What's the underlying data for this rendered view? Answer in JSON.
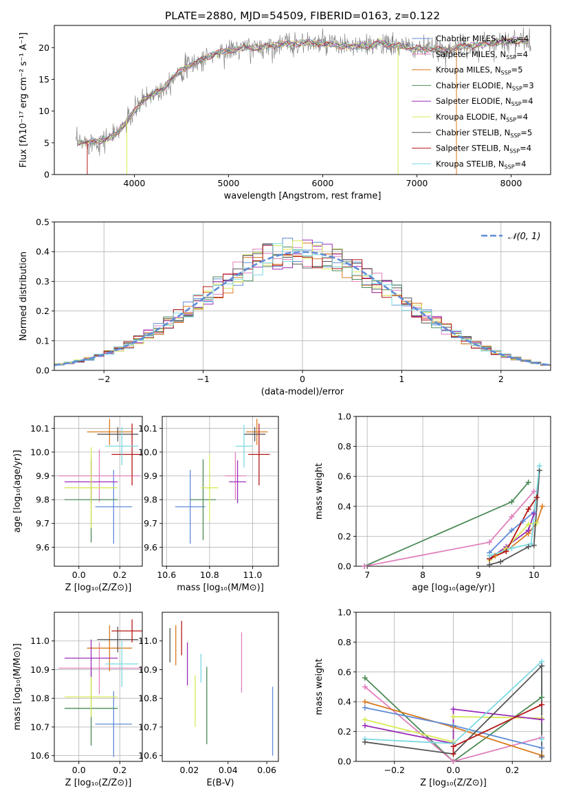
{
  "title": "PLATE=2880, MJD=54509, FIBERID=0163, z=0.122",
  "colors": {
    "chabrier_miles": "#5e8bd6",
    "salpeter_miles": "#e07fbd",
    "kroupa_miles": "#d9791c",
    "chabrier_elodie": "#4b8a55",
    "salpeter_elodie": "#9a2cb8",
    "kroupa_elodie": "#d8ea55",
    "chabrier_stelib": "#555555",
    "salpeter_stelib": "#b51515",
    "kroupa_stelib": "#7ad8e2",
    "gaussian": "#5e8bd6"
  },
  "chart_data": [
    {
      "id": "spectrum",
      "type": "line",
      "xlabel": "wavelength [Angstrom, rest frame]",
      "ylabel": "Flux [fλ10⁻¹⁷ erg cm⁻² s⁻¹ A⁻¹]",
      "xlim": [
        3150,
        8420
      ],
      "ylim": [
        0,
        23.5
      ],
      "xticks": [
        4000,
        5000,
        6000,
        7000,
        8000
      ],
      "yticks": [
        0,
        5,
        10,
        15,
        20
      ],
      "grid": false,
      "legend_position": "upper right",
      "continuum_x": [
        3400,
        3500,
        3600,
        3700,
        3800,
        3900,
        4000,
        4100,
        4200,
        4300,
        4400,
        4500,
        4600,
        4700,
        4800,
        4900,
        5000,
        5100,
        5200,
        5300,
        5400,
        5500,
        5600,
        5700,
        5800,
        5900,
        6000,
        6100,
        6200,
        6300,
        6400,
        6500,
        6600,
        6700,
        6800,
        6900,
        7000,
        7100,
        7200,
        7300,
        7400,
        7500,
        7600,
        7700,
        7800,
        7900,
        8000,
        8100,
        8200
      ],
      "continuum_y": [
        5.0,
        5.1,
        5.2,
        5.6,
        6.3,
        8.0,
        10.0,
        11.8,
        12.8,
        13.5,
        15.2,
        16.5,
        17.2,
        18.0,
        18.7,
        19.2,
        19.5,
        19.8,
        20.0,
        19.9,
        20.1,
        20.4,
        20.6,
        20.6,
        20.8,
        20.7,
        20.6,
        20.5,
        20.3,
        20.2,
        20.3,
        20.0,
        21.0,
        20.2,
        20.4,
        20.0,
        19.9,
        19.8,
        19.7,
        19.6,
        19.9,
        20.2,
        20.3,
        20.5,
        20.8,
        21.0,
        21.1,
        21.0,
        20.8
      ],
      "series": [
        {
          "name": "Chabrier MILES",
          "nssp": "4",
          "color_key": "chabrier_miles"
        },
        {
          "name": "Salpeter MILES",
          "nssp": "4",
          "color_key": "salpeter_miles"
        },
        {
          "name": "Kroupa MILES",
          "nssp": "5",
          "color_key": "kroupa_miles"
        },
        {
          "name": "Chabrier ELODIE",
          "nssp": "3",
          "color_key": "chabrier_elodie"
        },
        {
          "name": "Salpeter ELODIE",
          "nssp": "4",
          "color_key": "salpeter_elodie"
        },
        {
          "name": "Kroupa ELODIE",
          "nssp": "4",
          "color_key": "kroupa_elodie"
        },
        {
          "name": "Chabrier STELIB",
          "nssp": "5",
          "color_key": "chabrier_stelib"
        },
        {
          "name": "Salpeter STELIB",
          "nssp": "4",
          "color_key": "salpeter_stelib"
        },
        {
          "name": "Kroupa STELIB",
          "nssp": "4",
          "color_key": "kroupa_stelib"
        }
      ]
    },
    {
      "id": "residuals",
      "type": "histogram",
      "xlabel": "(data-model)/error",
      "ylabel": "Normed distribution",
      "xlim": [
        -2.5,
        2.5
      ],
      "ylim": [
        0,
        0.5
      ],
      "xticks": [
        -2,
        -1,
        0,
        1,
        2
      ],
      "xtick_labels": [
        "−2",
        "−1",
        "0",
        "1",
        "2"
      ],
      "yticks": [
        0.0,
        0.1,
        0.2,
        0.3,
        0.4,
        0.5
      ],
      "ytick_labels": [
        "0.0",
        "0.1",
        "0.2",
        "0.3",
        "0.4",
        "0.5"
      ],
      "grid": true,
      "legend_label": "𝒩(0, 1)",
      "legend_position": "upper right",
      "bin_width": 0.1
    },
    {
      "id": "z_vs_age",
      "type": "errorbar",
      "xlabel": "Z [log₁₀(Z/Z⊙)]",
      "ylabel": "age  [log₁₀(age/yr)]",
      "xlim": [
        -0.12,
        0.31
      ],
      "ylim": [
        9.52,
        10.15
      ],
      "xticks": [
        0.0,
        0.2
      ],
      "xtick_labels": [
        "0.0",
        "0.2"
      ],
      "yticks": [
        9.6,
        9.7,
        9.8,
        9.9,
        10.0,
        10.1
      ],
      "ytick_labels": [
        "9.6",
        "9.7",
        "9.8",
        "9.9",
        "10.0",
        "10.1"
      ],
      "grid": true,
      "points": [
        {
          "color_key": "chabrier_miles",
          "x": 0.17,
          "xerr": 0.09,
          "y": 9.77,
          "yerr": 0.155
        },
        {
          "color_key": "salpeter_miles",
          "x": 0.1,
          "xerr": 0.2,
          "y": 9.9,
          "yerr": 0.11
        },
        {
          "color_key": "kroupa_miles",
          "x": 0.15,
          "xerr": 0.11,
          "y": 10.085,
          "yerr": 0.055
        },
        {
          "color_key": "chabrier_elodie",
          "x": 0.06,
          "xerr": 0.13,
          "y": 9.8,
          "yerr": 0.18
        },
        {
          "color_key": "salpeter_elodie",
          "x": 0.06,
          "xerr": 0.13,
          "y": 9.875,
          "yerr": 0.09
        },
        {
          "color_key": "kroupa_elodie",
          "x": 0.06,
          "xerr": 0.13,
          "y": 9.85,
          "yerr": 0.17
        },
        {
          "color_key": "chabrier_stelib",
          "x": 0.19,
          "xerr": 0.1,
          "y": 10.075,
          "yerr": 0.03
        },
        {
          "color_key": "salpeter_stelib",
          "x": 0.26,
          "xerr": 0.1,
          "y": 9.99,
          "yerr": 0.13
        },
        {
          "color_key": "kroupa_stelib",
          "x": 0.21,
          "xerr": 0.08,
          "y": 10.025,
          "yerr": 0.08
        }
      ]
    },
    {
      "id": "mass_vs_age",
      "type": "errorbar",
      "xlabel": "mass [log₁₀(M/M⊙)]",
      "ylabel": "",
      "xlim": [
        10.58,
        11.12
      ],
      "ylim": [
        9.52,
        10.15
      ],
      "xticks": [
        10.6,
        10.8,
        11.0
      ],
      "xtick_labels": [
        "10.6",
        "10.8",
        "11.0"
      ],
      "yticks": [
        9.6,
        9.7,
        9.8,
        9.9,
        10.0,
        10.1
      ],
      "ytick_labels": [
        "9.6",
        "9.7",
        "9.8",
        "9.9",
        "10.0",
        "10.1"
      ],
      "grid": true,
      "points": [
        {
          "color_key": "chabrier_miles",
          "x": 10.71,
          "xerr": 0.07,
          "y": 9.77,
          "yerr": 0.155
        },
        {
          "color_key": "salpeter_miles",
          "x": 10.92,
          "xerr": 0.05,
          "y": 9.9,
          "yerr": 0.1
        },
        {
          "color_key": "kroupa_miles",
          "x": 11.02,
          "xerr": 0.05,
          "y": 10.085,
          "yerr": 0.055
        },
        {
          "color_key": "chabrier_elodie",
          "x": 10.77,
          "xerr": 0.06,
          "y": 9.8,
          "yerr": 0.17
        },
        {
          "color_key": "salpeter_elodie",
          "x": 10.93,
          "xerr": 0.04,
          "y": 9.875,
          "yerr": 0.09
        },
        {
          "color_key": "kroupa_elodie",
          "x": 10.8,
          "xerr": 0.04,
          "y": 9.85,
          "yerr": 0.14
        },
        {
          "color_key": "chabrier_stelib",
          "x": 11.01,
          "xerr": 0.05,
          "y": 10.075,
          "yerr": 0.03
        },
        {
          "color_key": "salpeter_stelib",
          "x": 11.03,
          "xerr": 0.05,
          "y": 9.99,
          "yerr": 0.13
        },
        {
          "color_key": "kroupa_stelib",
          "x": 10.96,
          "xerr": 0.04,
          "y": 10.025,
          "yerr": 0.09
        }
      ]
    },
    {
      "id": "age_vs_weight",
      "type": "line",
      "xlabel": "age  [log₁₀(age/yr)]",
      "ylabel": "mass weight",
      "xlim": [
        6.8,
        10.3
      ],
      "ylim": [
        0.0,
        1.0
      ],
      "xticks": [
        7,
        8,
        9,
        10
      ],
      "xtick_labels": [
        "7",
        "8",
        "9",
        "10"
      ],
      "yticks": [
        0.0,
        0.2,
        0.4,
        0.6,
        0.8,
        1.0
      ],
      "ytick_labels": [
        "0.0",
        "0.2",
        "0.4",
        "0.6",
        "0.8",
        "1.0"
      ],
      "grid": true,
      "series": [
        {
          "color_key": "chabrier_elodie",
          "x": [
            6.95,
            9.6,
            9.9
          ],
          "y": [
            0.0,
            0.43,
            0.56
          ]
        },
        {
          "color_key": "salpeter_miles",
          "x": [
            6.95,
            9.2,
            9.6,
            10.0
          ],
          "y": [
            0.0,
            0.16,
            0.33,
            0.5
          ]
        },
        {
          "color_key": "chabrier_miles",
          "x": [
            9.2,
            9.6,
            9.8,
            10.0
          ],
          "y": [
            0.09,
            0.24,
            0.3,
            0.36
          ]
        },
        {
          "color_key": "kroupa_miles",
          "x": [
            9.3,
            9.5,
            9.9,
            10.05,
            10.15
          ],
          "y": [
            0.07,
            0.1,
            0.22,
            0.29,
            0.4
          ]
        },
        {
          "color_key": "salpeter_elodie",
          "x": [
            9.2,
            9.5,
            9.9,
            10.0
          ],
          "y": [
            0.05,
            0.13,
            0.24,
            0.35
          ]
        },
        {
          "color_key": "kroupa_elodie",
          "x": [
            9.2,
            9.5,
            9.9,
            10.05
          ],
          "y": [
            0.04,
            0.12,
            0.28,
            0.29
          ]
        },
        {
          "color_key": "chabrier_stelib",
          "x": [
            9.2,
            9.4,
            9.9,
            10.0,
            10.1
          ],
          "y": [
            0.01,
            0.03,
            0.13,
            0.14,
            0.64
          ]
        },
        {
          "color_key": "salpeter_stelib",
          "x": [
            9.2,
            9.5,
            9.9,
            10.05
          ],
          "y": [
            0.05,
            0.1,
            0.38,
            0.46
          ]
        },
        {
          "color_key": "kroupa_stelib",
          "x": [
            9.2,
            9.6,
            9.95,
            10.1
          ],
          "y": [
            0.07,
            0.12,
            0.15,
            0.67
          ]
        }
      ]
    },
    {
      "id": "z_vs_mass",
      "type": "errorbar",
      "xlabel": "Z [log₁₀(Z/Z⊙)]",
      "ylabel": "mass [log₁₀(M/M⊙)]",
      "xlim": [
        -0.12,
        0.31
      ],
      "ylim": [
        10.58,
        11.1
      ],
      "xticks": [
        0.0,
        0.2
      ],
      "xtick_labels": [
        "0.0",
        "0.2"
      ],
      "yticks": [
        10.6,
        10.7,
        10.8,
        10.9,
        11.0
      ],
      "ytick_labels": [
        "10.6",
        "10.7",
        "10.8",
        "10.9",
        "11.0"
      ],
      "grid": true,
      "points": [
        {
          "color_key": "chabrier_miles",
          "x": 0.17,
          "xerr": 0.09,
          "y": 10.71,
          "yerr": 0.115
        },
        {
          "color_key": "salpeter_miles",
          "x": 0.1,
          "xerr": 0.2,
          "y": 10.905,
          "yerr": 0.09
        },
        {
          "color_key": "kroupa_miles",
          "x": 0.15,
          "xerr": 0.11,
          "y": 10.975,
          "yerr": 0.08
        },
        {
          "color_key": "chabrier_elodie",
          "x": 0.06,
          "xerr": 0.13,
          "y": 10.765,
          "yerr": 0.13
        },
        {
          "color_key": "salpeter_elodie",
          "x": 0.06,
          "xerr": 0.13,
          "y": 10.94,
          "yerr": 0.065
        },
        {
          "color_key": "kroupa_elodie",
          "x": 0.06,
          "xerr": 0.13,
          "y": 10.805,
          "yerr": 0.07
        },
        {
          "color_key": "chabrier_stelib",
          "x": 0.19,
          "xerr": 0.1,
          "y": 11.005,
          "yerr": 0.045
        },
        {
          "color_key": "salpeter_stelib",
          "x": 0.26,
          "xerr": 0.1,
          "y": 11.035,
          "yerr": 0.04
        },
        {
          "color_key": "kroupa_stelib",
          "x": 0.21,
          "xerr": 0.08,
          "y": 10.92,
          "yerr": 0.08
        }
      ]
    },
    {
      "id": "ebv_vs_mass",
      "type": "errorbar",
      "xlabel": "E(B-V)",
      "ylabel": "",
      "xlim": [
        0.006,
        0.066
      ],
      "ylim": [
        10.58,
        11.1
      ],
      "xticks": [
        0.02,
        0.04,
        0.06
      ],
      "xtick_labels": [
        "0.02",
        "0.04",
        "0.06"
      ],
      "yticks": [
        10.6,
        10.7,
        10.8,
        10.9,
        11.0
      ],
      "ytick_labels": [
        "10.6",
        "10.7",
        "10.8",
        "10.9",
        "11.0"
      ],
      "grid": false,
      "points": [
        {
          "color_key": "chabrier_miles",
          "x": 0.063,
          "xerr": 0,
          "y": 10.72,
          "yerr": 0.12
        },
        {
          "color_key": "salpeter_miles",
          "x": 0.047,
          "xerr": 0,
          "y": 10.925,
          "yerr": 0.105
        },
        {
          "color_key": "kroupa_miles",
          "x": 0.013,
          "xerr": 0,
          "y": 10.985,
          "yerr": 0.07
        },
        {
          "color_key": "chabrier_elodie",
          "x": 0.029,
          "xerr": 0,
          "y": 10.775,
          "yerr": 0.135
        },
        {
          "color_key": "salpeter_elodie",
          "x": 0.019,
          "xerr": 0,
          "y": 10.92,
          "yerr": 0.075
        },
        {
          "color_key": "kroupa_elodie",
          "x": 0.023,
          "xerr": 0,
          "y": 10.79,
          "yerr": 0.09
        },
        {
          "color_key": "chabrier_stelib",
          "x": 0.01,
          "xerr": 0,
          "y": 10.985,
          "yerr": 0.06
        },
        {
          "color_key": "salpeter_stelib",
          "x": 0.016,
          "xerr": 0,
          "y": 11.01,
          "yerr": 0.06
        },
        {
          "color_key": "kroupa_stelib",
          "x": 0.026,
          "xerr": 0,
          "y": 10.905,
          "yerr": 0.05
        }
      ]
    },
    {
      "id": "z_vs_weight",
      "type": "line",
      "xlabel": "Z [log₁₀(Z/Z⊙)]",
      "ylabel": "mass weight",
      "xlim": [
        -0.33,
        0.33
      ],
      "ylim": [
        0.0,
        1.0
      ],
      "xticks": [
        -0.2,
        0.0,
        0.2
      ],
      "xtick_labels": [
        "−0.2",
        "0.0",
        "0.2"
      ],
      "yticks": [
        0.0,
        0.2,
        0.4,
        0.6,
        0.8,
        1.0
      ],
      "ytick_labels": [
        "0.0",
        "0.2",
        "0.4",
        "0.6",
        "0.8",
        "1.0"
      ],
      "grid": true,
      "series": [
        {
          "color_key": "chabrier_elodie",
          "x": [
            -0.3,
            0.0,
            0.3
          ],
          "y": [
            0.56,
            0.0,
            0.43
          ]
        },
        {
          "color_key": "salpeter_miles",
          "x": [
            -0.3,
            0.0,
            0.3
          ],
          "y": [
            0.5,
            0.0,
            0.16
          ]
        },
        {
          "color_key": "kroupa_miles",
          "x": [
            -0.3,
            0.0,
            0.3
          ],
          "y": [
            0.4,
            0.23,
            0.04
          ]
        },
        {
          "color_key": "chabrier_miles",
          "x": [
            -0.3,
            0.0,
            0.3
          ],
          "y": [
            0.36,
            0.24,
            0.09
          ]
        },
        {
          "color_key": "kroupa_elodie",
          "x": [
            -0.3,
            0.0,
            0.0,
            0.3
          ],
          "y": [
            0.28,
            0.13,
            0.3,
            0.29
          ]
        },
        {
          "color_key": "salpeter_elodie",
          "x": [
            -0.3,
            0.0,
            0.0,
            0.3
          ],
          "y": [
            0.24,
            0.12,
            0.35,
            0.28
          ]
        },
        {
          "color_key": "kroupa_stelib",
          "x": [
            -0.3,
            0.0,
            0.3,
            0.3
          ],
          "y": [
            0.15,
            0.12,
            0.67,
            0.15
          ]
        },
        {
          "color_key": "chabrier_stelib",
          "x": [
            -0.3,
            0.0,
            0.3,
            0.3
          ],
          "y": [
            0.13,
            0.05,
            0.64,
            0.03
          ]
        },
        {
          "color_key": "salpeter_stelib",
          "x": [
            0.0,
            0.0,
            0.3
          ],
          "y": [
            0.05,
            0.1,
            0.38
          ]
        }
      ]
    }
  ]
}
